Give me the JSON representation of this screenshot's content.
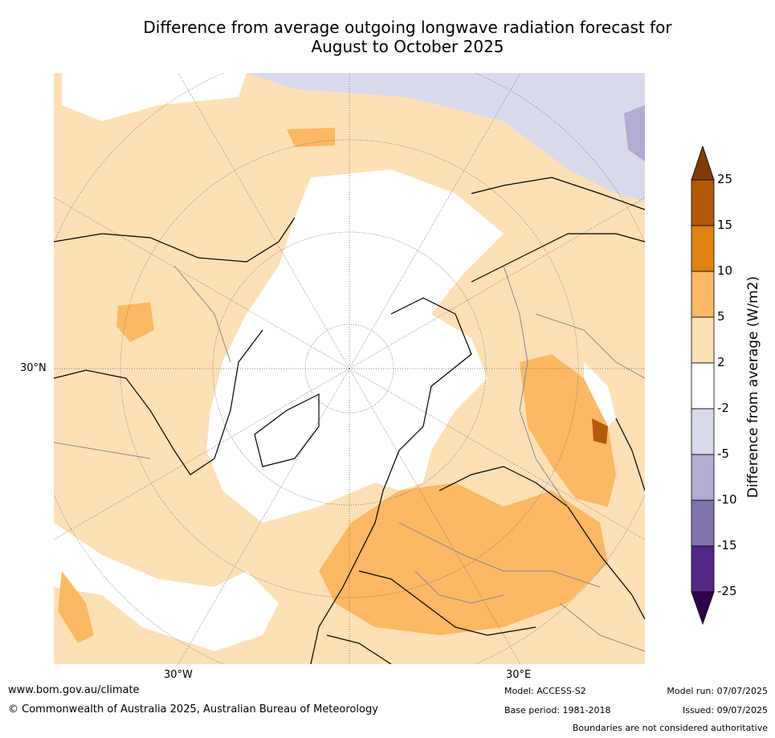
{
  "title_line1": "Difference from average outgoing longwave radiation forecast for",
  "title_line2": "August to October 2025",
  "map_labels": {
    "lat_30n": "30°N",
    "lon_30w": "30°W",
    "lon_30e": "30°E"
  },
  "colorbar": {
    "title": "Difference from average (W/m2)",
    "ticks": [
      "25",
      "15",
      "10",
      "5",
      "2",
      "-2",
      "-5",
      "-10",
      "-15",
      "-25"
    ],
    "colors": [
      "#7f3b08",
      "#b35806",
      "#e08214",
      "#fdb863",
      "#fee0b6",
      "#ffffff",
      "#d8daeb",
      "#b2abd2",
      "#8073ac",
      "#542788",
      "#2d004b"
    ]
  },
  "footer": {
    "website": "www.bom.gov.au/climate",
    "copyright": "© Commonwealth of Australia 2025, Australian Bureau of Meteorology",
    "model": "Model: ACCESS-S2",
    "base_period": "Base period: 1981-2018",
    "model_run": "Model run: 07/07/2025",
    "issued": "Issued: 09/07/2025",
    "disclaimer": "Boundaries are not considered authoritative"
  }
}
